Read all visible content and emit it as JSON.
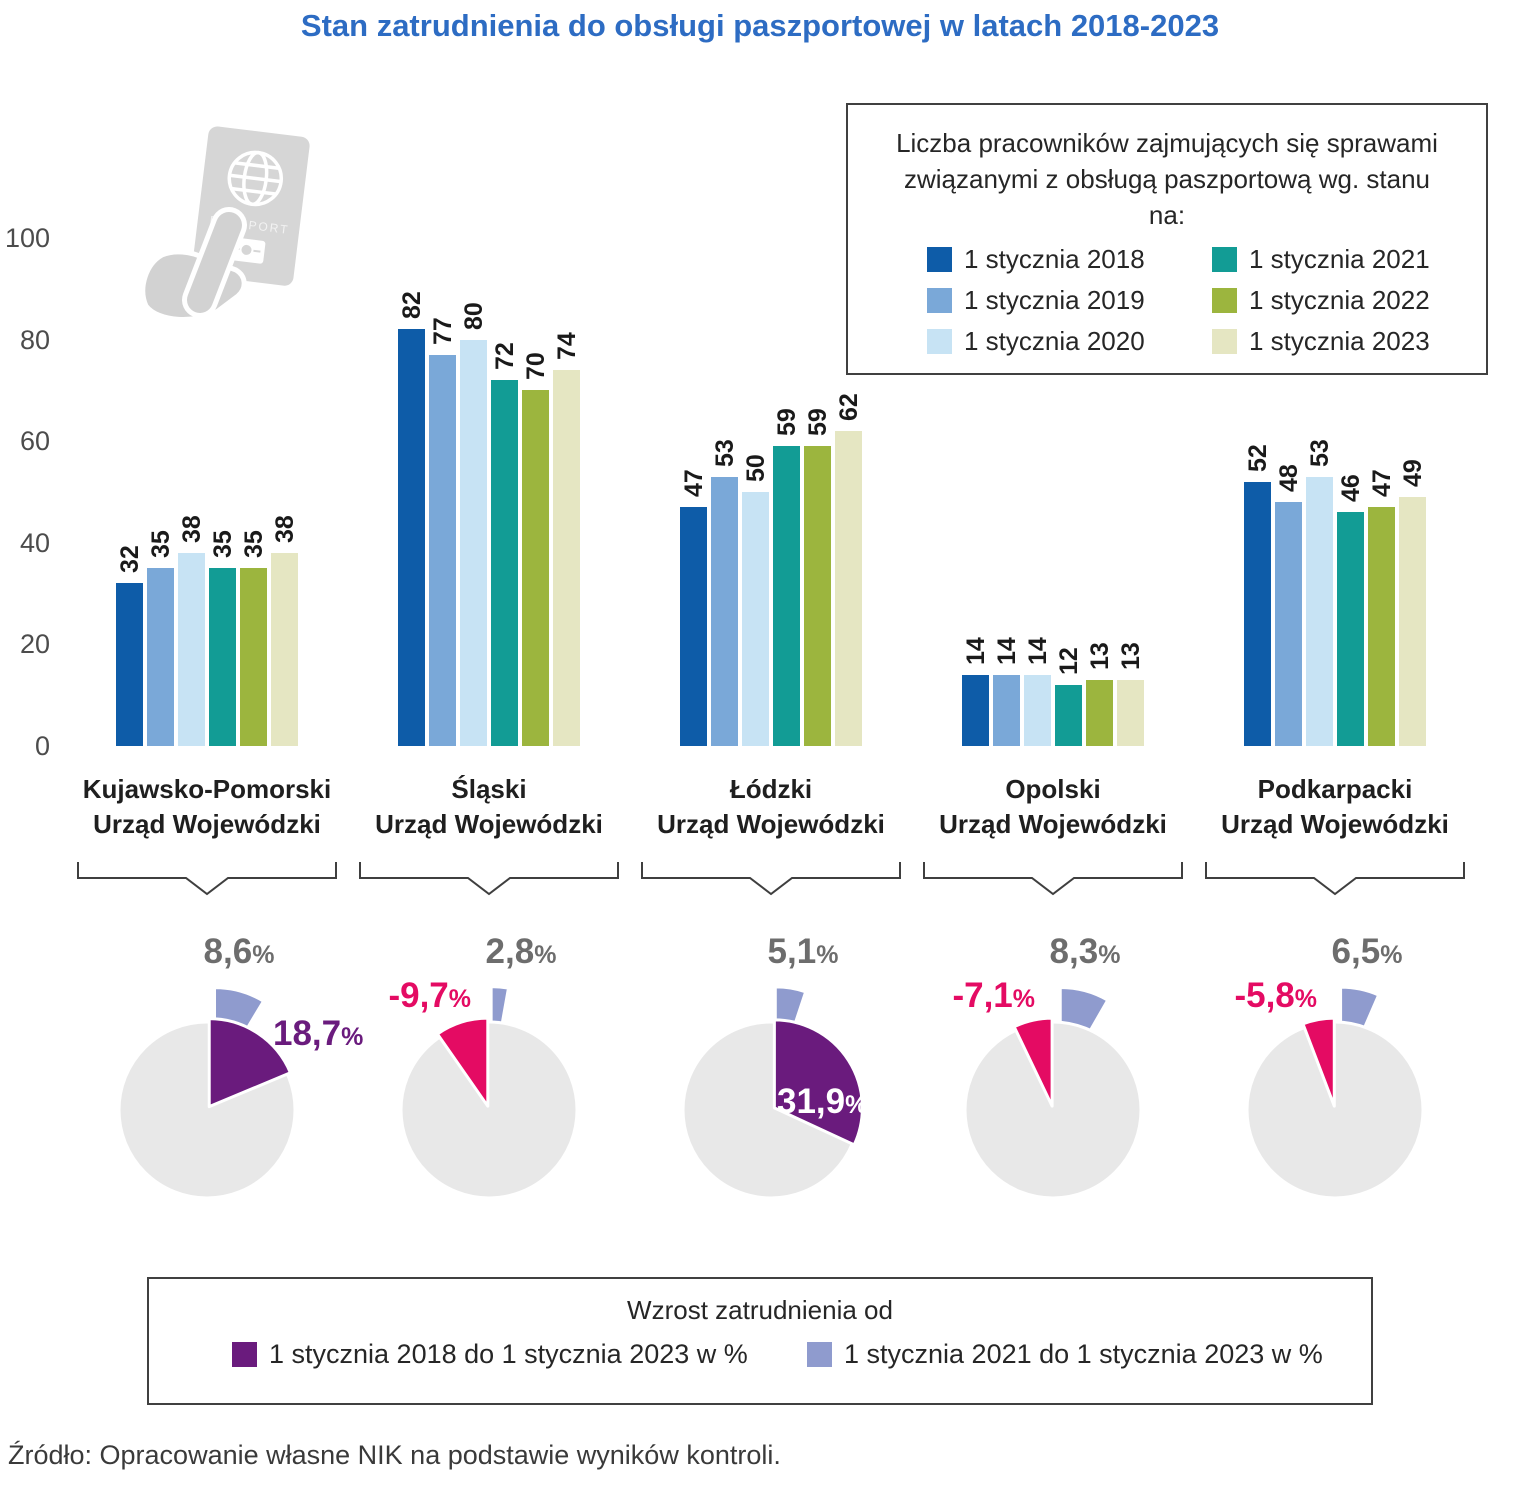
{
  "title": "Stan zatrudnienia do obsługi paszportowej w latach 2018-2023",
  "source": "Źródło: Opracowanie własne NIK na podstawie wyników kontroli.",
  "passport_icon_text": "PASSPORT",
  "colors": {
    "title_blue": "#2d6cc3",
    "negative_pink": "#e40b63",
    "pie_base_gray": "#e8e8e8",
    "top_pct_label_gray": "#6d6d6d",
    "gridline_gray": "#9b9b9b"
  },
  "chart_data": [
    {
      "type": "bar",
      "legend": {
        "title": "Liczba pracowników zajmujących się sprawami związanymi z obsługą paszportową wg. stanu na:",
        "position": "top-right",
        "items": [
          {
            "label": "1 stycznia 2018",
            "color": "#0e5ca8"
          },
          {
            "label": "1 stycznia 2019",
            "color": "#7aa8d8"
          },
          {
            "label": "1 stycznia 2020",
            "color": "#c7e3f4"
          },
          {
            "label": "1 stycznia 2021",
            "color": "#129c95"
          },
          {
            "label": "1 stycznia 2022",
            "color": "#9cb53e"
          },
          {
            "label": "1 stycznia 2023",
            "color": "#e5e6c2"
          }
        ]
      },
      "categories": [
        "Kujawsko-Pomorski",
        "Śląski",
        "Łódzki",
        "Opolski",
        "Podkarpacki"
      ],
      "category_suffix": "Urząd Wojewódzki",
      "series": [
        {
          "name": "1 stycznia 2018",
          "color": "#0e5ca8",
          "values": [
            32,
            82,
            47,
            14,
            52
          ]
        },
        {
          "name": "1 stycznia 2019",
          "color": "#7aa8d8",
          "values": [
            35,
            77,
            53,
            14,
            48
          ]
        },
        {
          "name": "1 stycznia 2020",
          "color": "#c7e3f4",
          "values": [
            38,
            80,
            50,
            14,
            53
          ]
        },
        {
          "name": "1 stycznia 2021",
          "color": "#129c95",
          "values": [
            35,
            72,
            59,
            12,
            46
          ]
        },
        {
          "name": "1 stycznia 2022",
          "color": "#9cb53e",
          "values": [
            35,
            70,
            59,
            13,
            47
          ]
        },
        {
          "name": "1 stycznia 2023",
          "color": "#e5e6c2",
          "values": [
            38,
            74,
            62,
            13,
            49
          ]
        }
      ],
      "ylim": [
        0,
        100
      ],
      "yticks": [
        0,
        20,
        40,
        60,
        80,
        100
      ],
      "grid": true
    },
    {
      "type": "pie",
      "legend": {
        "title": "Wzrost zatrudnienia od",
        "position": "bottom",
        "items": [
          {
            "label": "1 stycznia 2018 do 1 stycznia 2023 w %",
            "color": "#6a1b7d"
          },
          {
            "label": "1 stycznia 2021 do 1 stycznia 2023 w %",
            "color": "#8f9bce"
          }
        ]
      },
      "pies": [
        {
          "category": "Kujawsko-Pomorski",
          "growth_2018_2023": 18.7,
          "growth_2018_2023_label": "18,7",
          "growth_2021_2023": 8.6,
          "growth_2021_2023_label": "8,6",
          "main_label_position": "right"
        },
        {
          "category": "Śląski",
          "growth_2018_2023": -9.7,
          "growth_2018_2023_label": "-9,7",
          "growth_2021_2023": 2.8,
          "growth_2021_2023_label": "2,8",
          "main_label_position": "left"
        },
        {
          "category": "Łódzki",
          "growth_2018_2023": 31.9,
          "growth_2018_2023_label": "31,9",
          "growth_2021_2023": 5.1,
          "growth_2021_2023_label": "5,1",
          "main_label_position": "inside"
        },
        {
          "category": "Opolski",
          "growth_2018_2023": -7.1,
          "growth_2018_2023_label": "-7,1",
          "growth_2021_2023": 8.3,
          "growth_2021_2023_label": "8,3",
          "main_label_position": "left"
        },
        {
          "category": "Podkarpacki",
          "growth_2018_2023": -5.8,
          "growth_2018_2023_label": "-5,8",
          "growth_2021_2023": 6.5,
          "growth_2021_2023_label": "6,5",
          "main_label_position": "left"
        }
      ]
    }
  ]
}
